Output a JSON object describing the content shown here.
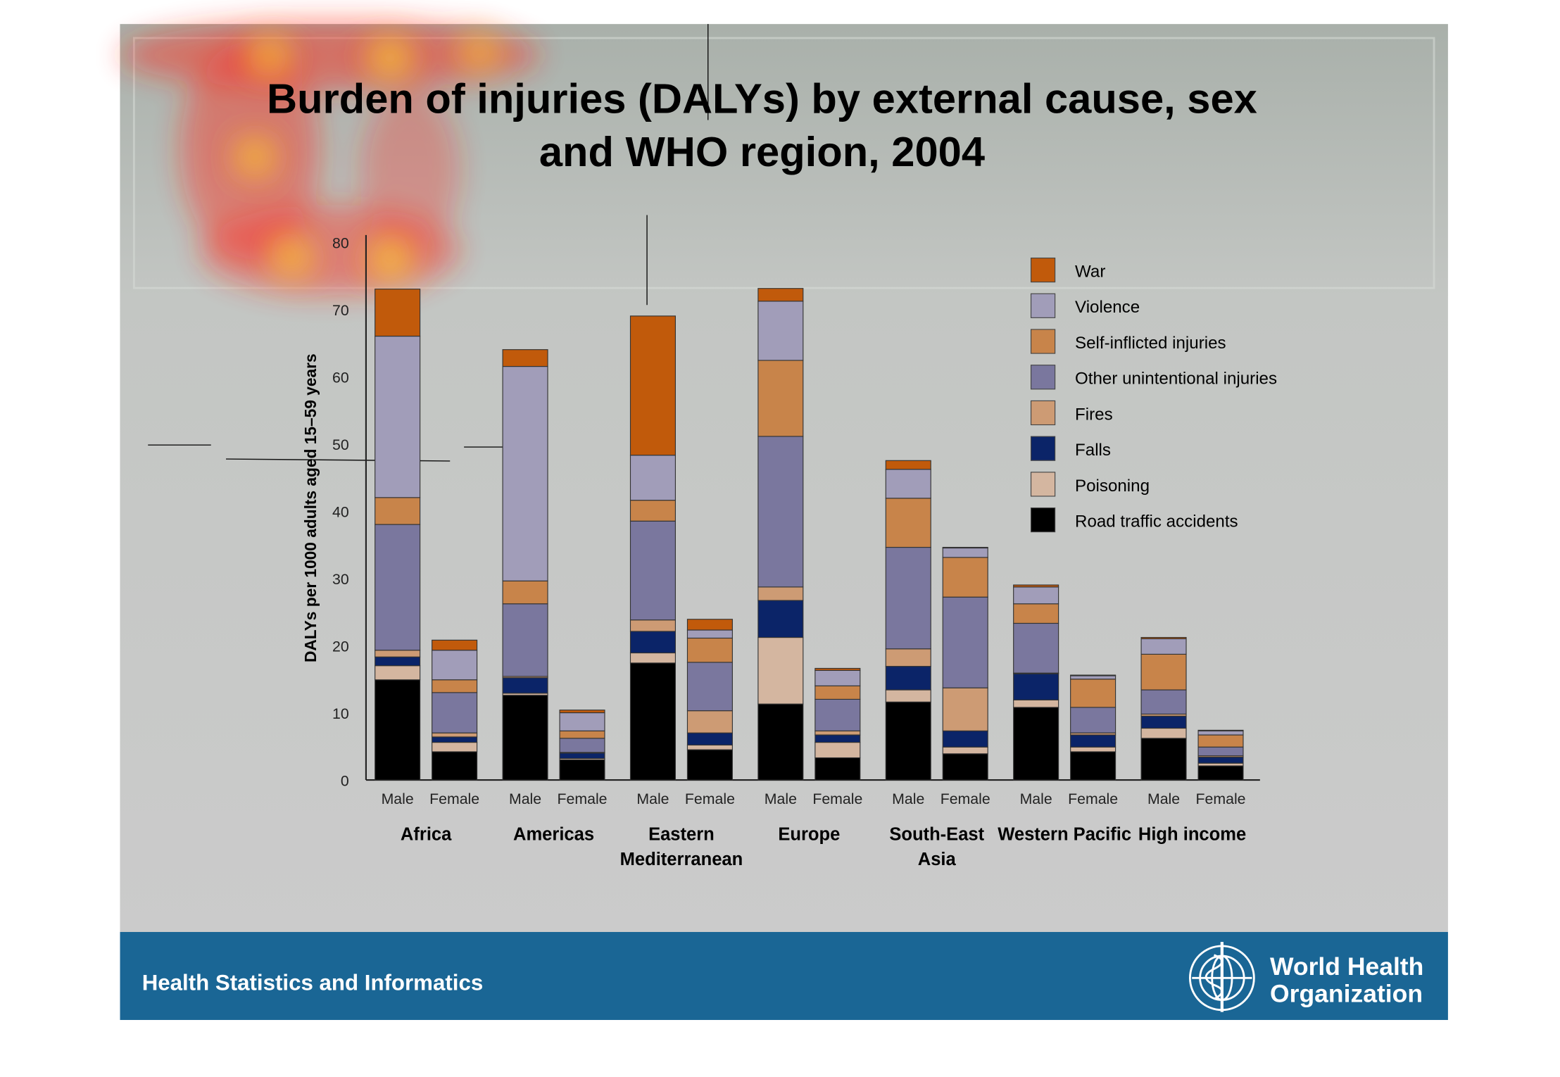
{
  "slide": {
    "footer_text": "Health Statistics and Informatics",
    "logo_text": [
      "World Health",
      "Organization"
    ]
  },
  "chart_data": {
    "type": "bar",
    "stacked": true,
    "title": [
      "Burden of injuries (DALYs) by external cause, sex",
      "and WHO region, 2004"
    ],
    "ylabel": "DALYs per 1000 adults aged 15–59 years",
    "xlabel": "",
    "ylim": [
      0,
      80
    ],
    "yticks": [
      0,
      10,
      20,
      30,
      40,
      50,
      60,
      70,
      80
    ],
    "legend_position": "top-right",
    "regions": [
      {
        "name": [
          "Africa"
        ]
      },
      {
        "name": [
          "Americas"
        ]
      },
      {
        "name": [
          "Eastern",
          "Mediterranean"
        ]
      },
      {
        "name": [
          "Europe"
        ]
      },
      {
        "name": [
          "South-East",
          "Asia"
        ]
      },
      {
        "name": [
          "Western Pacific"
        ]
      },
      {
        "name": [
          "High income"
        ]
      }
    ],
    "sexes": [
      "Male",
      "Female"
    ],
    "series": [
      {
        "name": "Road traffic accidents",
        "color": "#000000",
        "values": [
          14.9,
          4.2,
          12.6,
          3.0,
          17.4,
          4.5,
          11.3,
          3.3,
          11.6,
          3.9,
          10.8,
          4.2,
          6.2,
          2.1
        ]
      },
      {
        "name": "Poisoning",
        "color": "#d4b6a0",
        "values": [
          2.1,
          1.4,
          0.3,
          0.2,
          1.5,
          0.7,
          9.9,
          2.3,
          1.8,
          1.0,
          1.1,
          0.7,
          1.5,
          0.4
        ]
      },
      {
        "name": "Falls",
        "color": "#0b2468",
        "values": [
          1.3,
          0.8,
          2.3,
          0.8,
          3.2,
          1.8,
          5.5,
          1.1,
          3.5,
          2.4,
          3.9,
          1.8,
          1.8,
          0.9
        ]
      },
      {
        "name": "Fires",
        "color": "#cd9b74",
        "values": [
          1.0,
          0.6,
          0.2,
          0.1,
          1.7,
          3.3,
          2.0,
          0.6,
          2.6,
          6.4,
          0.1,
          0.3,
          0.3,
          0.2
        ]
      },
      {
        "name": "Other unintentional injuries",
        "color": "#7a779e",
        "values": [
          18.7,
          6.0,
          10.8,
          2.1,
          14.7,
          7.2,
          22.4,
          4.7,
          15.1,
          13.5,
          7.4,
          3.8,
          3.6,
          1.3
        ]
      },
      {
        "name": "Self-inflicted injuries",
        "color": "#c8844a",
        "values": [
          4.0,
          1.9,
          3.4,
          1.1,
          3.1,
          3.6,
          11.3,
          2.0,
          7.3,
          5.9,
          2.9,
          4.2,
          5.3,
          1.8
        ]
      },
      {
        "name": "Violence",
        "color": "#a19db9",
        "values": [
          24.0,
          4.4,
          31.9,
          2.7,
          6.7,
          1.2,
          8.8,
          2.3,
          4.3,
          1.4,
          2.5,
          0.5,
          2.3,
          0.6
        ]
      },
      {
        "name": "War",
        "color": "#c15a0b",
        "values": [
          7.0,
          1.5,
          2.5,
          0.4,
          20.7,
          1.6,
          1.9,
          0.3,
          1.3,
          0.1,
          0.3,
          0.1,
          0.2,
          0.1
        ]
      }
    ]
  }
}
